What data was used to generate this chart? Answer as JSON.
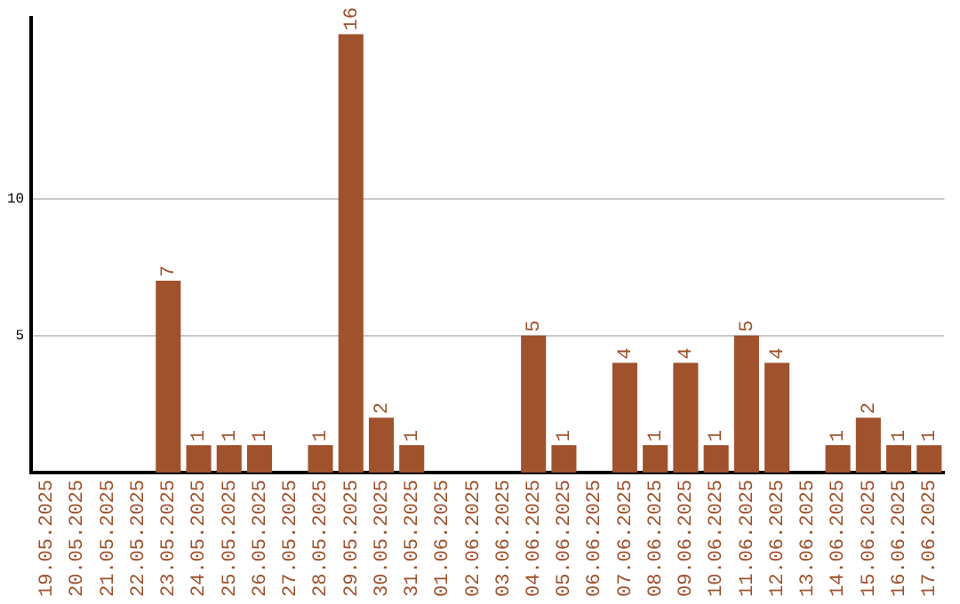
{
  "chart_data": {
    "type": "bar",
    "categories": [
      "19.05.2025",
      "20.05.2025",
      "21.05.2025",
      "22.05.2025",
      "23.05.2025",
      "24.05.2025",
      "25.05.2025",
      "26.05.2025",
      "27.05.2025",
      "28.05.2025",
      "29.05.2025",
      "30.05.2025",
      "31.05.2025",
      "01.06.2025",
      "02.06.2025",
      "03.06.2025",
      "04.06.2025",
      "05.06.2025",
      "06.06.2025",
      "07.06.2025",
      "08.06.2025",
      "09.06.2025",
      "10.06.2025",
      "11.06.2025",
      "12.06.2025",
      "13.06.2025",
      "14.06.2025",
      "15.06.2025",
      "16.06.2025",
      "17.06.2025"
    ],
    "values": [
      0,
      0,
      0,
      0,
      7,
      1,
      1,
      1,
      0,
      1,
      16,
      2,
      1,
      0,
      0,
      0,
      5,
      1,
      0,
      4,
      1,
      4,
      1,
      5,
      4,
      0,
      1,
      2,
      1,
      1
    ],
    "value_labels": [
      null,
      null,
      null,
      null,
      "7",
      "1",
      "1",
      "1",
      null,
      "1",
      "16",
      "2",
      "1",
      null,
      null,
      null,
      "5",
      "1",
      null,
      "4",
      "1",
      "4",
      "1",
      "5",
      "4",
      null,
      "1",
      "2",
      "1",
      "1"
    ],
    "color": "#a0522d",
    "ylim": [
      0,
      16.6
    ],
    "yticks": [
      5,
      10
    ],
    "grid": "y",
    "legend": false
  }
}
